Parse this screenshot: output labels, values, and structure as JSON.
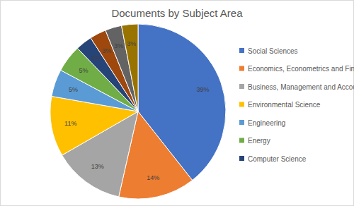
{
  "chart_data": {
    "type": "pie",
    "title": "Documents by Subject Area",
    "categories": [
      "Social Sciences",
      "Economics, Econometrics and Finance",
      "Business, Management and Accounting",
      "Environmental Science",
      "Engineering",
      "Energy",
      "Computer Science",
      null,
      null,
      null
    ],
    "values": [
      39,
      14,
      13,
      11,
      5,
      5,
      3,
      3,
      3,
      3
    ],
    "value_labels": [
      "39%",
      "14%",
      "13%",
      "11%",
      "5%",
      "5%",
      "3%",
      "3%",
      "3%",
      "3%"
    ],
    "colors": [
      "#4472c4",
      "#ed7d31",
      "#a5a5a5",
      "#ffc000",
      "#5b9bd5",
      "#70ad47",
      "#264478",
      "#9e480e",
      "#636363",
      "#997300"
    ],
    "data_labels": true,
    "legend": "right"
  }
}
